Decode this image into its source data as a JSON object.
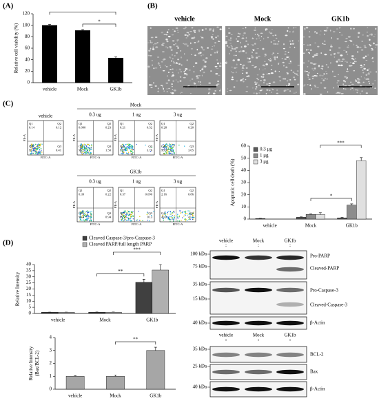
{
  "panel_labels": [
    "(A)",
    "(B)",
    "(C)",
    "(D)"
  ],
  "chart_data": [
    {
      "type": "bar",
      "ylabel": "Relative cell viability (%)",
      "categories": [
        "vehicle",
        "Mock",
        "GK1b"
      ],
      "values": [
        100,
        91,
        43
      ],
      "errors": [
        1.5,
        1.5,
        2
      ],
      "color": "#000000",
      "ylim": [
        0,
        120
      ],
      "yticks": [
        0,
        20,
        40,
        60,
        80,
        100,
        120
      ],
      "annotations": [
        {
          "text": "*",
          "between": [
            "Mock",
            "GK1b"
          ]
        },
        {
          "between": [
            "vehicle",
            "GK1b"
          ]
        }
      ]
    },
    {
      "type": "bar",
      "ylabel": "Apoptotic cell death (%)",
      "categories": [
        "vehicle",
        "Mock",
        "GK1b"
      ],
      "series": [
        {
          "name": "0.3 μg",
          "color": "#595959",
          "values": [
            0.5,
            1.5,
            1
          ],
          "errors": [
            0.1,
            0.3,
            0.3
          ]
        },
        {
          "name": "1 μg",
          "color": "#8c8c8c",
          "values": [
            null,
            3.8,
            11.5
          ],
          "errors": [
            null,
            0.5,
            1
          ]
        },
        {
          "name": "3 μg",
          "color": "#e0e0e0",
          "values": [
            null,
            3.7,
            48
          ],
          "errors": [
            null,
            1.5,
            2.5
          ]
        }
      ],
      "ylim": [
        0,
        60
      ],
      "yticks": [
        0,
        10,
        20,
        30,
        40,
        50,
        60
      ],
      "legend": "top-left",
      "annotations": [
        {
          "text": "*",
          "between": [
            "Mock",
            "GK1b"
          ],
          "series": "1 μg"
        },
        {
          "text": "***",
          "between": [
            "Mock",
            "GK1b"
          ],
          "series": "3 μg"
        }
      ]
    },
    {
      "type": "bar",
      "ylabel": "Relative Intensity",
      "categories": [
        "vehicle",
        "Mock",
        "GK1b"
      ],
      "series": [
        {
          "name": "Cleaved Caspase-3/pro-Caspase-3",
          "color": "#404040",
          "values": [
            1,
            1,
            25.5
          ],
          "errors": [
            0.1,
            0.2,
            2.5
          ]
        },
        {
          "name": "Cleaved PARP/full length PARP",
          "color": "#b0b0b0",
          "values": [
            1,
            1,
            35.5
          ],
          "errors": [
            0.1,
            0.2,
            4.5
          ]
        }
      ],
      "ylim": [
        0,
        40
      ],
      "yticks": [
        0,
        5,
        10,
        15,
        20,
        25,
        30,
        35,
        40
      ],
      "legend": "top",
      "annotations": [
        {
          "text": "**",
          "between": [
            "Mock",
            "GK1b"
          ],
          "series": "Cleaved Caspase-3/pro-Caspase-3"
        },
        {
          "text": "***",
          "between": [
            "Mock",
            "GK1b"
          ],
          "series": "Cleaved PARP/full length PARP"
        }
      ]
    },
    {
      "type": "bar",
      "ylabel": [
        "Relative Intensity",
        "(Bax/BCL-2)"
      ],
      "categories": [
        "vehicle",
        "Mock",
        "GK1b"
      ],
      "values": [
        1,
        1,
        3
      ],
      "errors": [
        0.05,
        0.1,
        0.25
      ],
      "color": "#a6a6a6",
      "ylim": [
        0,
        4
      ],
      "yticks": [
        0,
        1,
        2,
        3,
        4
      ],
      "annotations": [
        {
          "text": "**",
          "between": [
            "Mock",
            "GK1b"
          ]
        }
      ]
    }
  ],
  "micrographs": {
    "labels": [
      "vehicle",
      "Mock",
      "GK1b"
    ]
  },
  "flow": {
    "x_label": "FITC-A",
    "y_label": "PE-A",
    "control": {
      "name": "vehicle",
      "quadrants": [
        {
          "label": "Q1",
          "value": "0.14"
        },
        {
          "label": "Q2",
          "value": "0.12"
        },
        {
          "label": "Q3",
          "value": "0.41"
        },
        {
          "label": "Q4",
          "value": "99.3"
        }
      ]
    },
    "groups": [
      {
        "name": "Mock",
        "doses": [
          {
            "dose": "0.3 ug",
            "quadrants": [
              {
                "label": "Q1",
                "value": "0.090"
              },
              {
                "label": "Q2",
                "value": "0.23"
              },
              {
                "label": "Q3",
                "value": "1.50"
              },
              {
                "label": "Q4",
                "value": "98.2"
              }
            ]
          },
          {
            "dose": "1 ug",
            "quadrants": [
              {
                "label": "Q1",
                "value": "0.21"
              },
              {
                "label": "Q2",
                "value": "0.32"
              },
              {
                "label": "Q3",
                "value": "3.76"
              },
              {
                "label": "Q4",
                "value": "95.7"
              }
            ]
          },
          {
            "dose": "3 ug",
            "quadrants": [
              {
                "label": "Q1",
                "value": "0.28"
              },
              {
                "label": "Q2",
                "value": "0.20"
              },
              {
                "label": "Q3",
                "value": "3.65"
              },
              {
                "label": "Q4",
                "value": "95.9"
              }
            ]
          }
        ]
      },
      {
        "name": "GK1b",
        "doses": [
          {
            "dose": "0.3 ug",
            "quadrants": [
              {
                "label": "Q1",
                "value": "0.39"
              },
              {
                "label": "Q2",
                "value": "0.22"
              },
              {
                "label": "Q3",
                "value": "0.94"
              },
              {
                "label": "Q4",
                "value": "98.4"
              }
            ]
          },
          {
            "dose": "1 ug",
            "quadrants": [
              {
                "label": "Q1",
                "value": "0.37"
              },
              {
                "label": "Q2",
                "value": "0.090"
              },
              {
                "label": "Q3",
                "value": "10.3"
              },
              {
                "label": "Q4",
                "value": "89.3"
              }
            ]
          },
          {
            "dose": "3 ug",
            "quadrants": [
              {
                "label": "Q1",
                "value": "2.16"
              },
              {
                "label": "Q2",
                "value": "0.86"
              },
              {
                "label": "Q3",
                "value": "47.1"
              },
              {
                "label": "Q4",
                "value": "49.9"
              }
            ]
          }
        ]
      }
    ]
  },
  "blots": [
    {
      "lanes": [
        "vehicle",
        "Mock",
        "GK1b"
      ],
      "rows": [
        {
          "markers": [
            "100 kDa",
            "75 kDa"
          ],
          "labels": [
            "Pro-PARP",
            "Cleaved-PARP"
          ]
        },
        {
          "markers": [
            "35 kDa",
            "15 kDa"
          ],
          "labels": [
            "Pro-Caspase-3",
            "Cleaved-Caspase-3"
          ]
        },
        {
          "markers": [
            "40 kDa"
          ],
          "labels": [
            "β-Actin"
          ]
        }
      ]
    },
    {
      "lanes": [
        "vehicle",
        "Mock",
        "GK1b"
      ],
      "rows": [
        {
          "markers": [
            "35 kDa"
          ],
          "labels": [
            "BCL-2"
          ]
        },
        {
          "markers": [
            "25 kDa"
          ],
          "labels": [
            "Bax"
          ]
        },
        {
          "markers": [
            "40 kDa"
          ],
          "labels": [
            "β-Actin"
          ]
        }
      ]
    }
  ]
}
